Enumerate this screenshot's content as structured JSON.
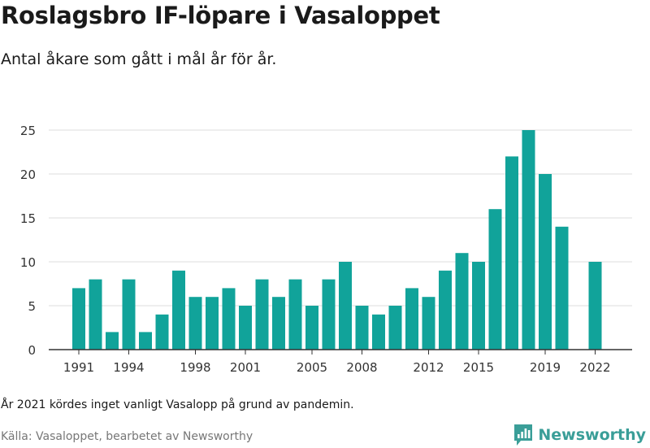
{
  "header": {
    "title": "Roslagsbro IF-löpare i Vasaloppet",
    "subtitle": "Antal åkare som gått i mål år för år."
  },
  "footer": {
    "note": "År 2021 kördes inget vanligt Vasalopp på grund av pandemin.",
    "source": "Källa: Vasaloppet, bearbetet av Newsworthy",
    "brand": "Newsworthy",
    "brand_icon": "newsworthy-logo-icon"
  },
  "colors": {
    "bar": "#11a39a",
    "grid": "#dddddd",
    "axis": "#333333",
    "brand": "#3a9e98"
  },
  "chart_data": {
    "type": "bar",
    "title": "Roslagsbro IF-löpare i Vasaloppet",
    "subtitle": "Antal åkare som gått i mål år för år.",
    "xlabel": "",
    "ylabel": "",
    "categories": [
      1991,
      1992,
      1993,
      1994,
      1995,
      1996,
      1997,
      1998,
      1999,
      2000,
      2001,
      2002,
      2003,
      2004,
      2005,
      2006,
      2007,
      2008,
      2009,
      2010,
      2011,
      2012,
      2013,
      2014,
      2015,
      2016,
      2017,
      2018,
      2019,
      2020,
      2021,
      2022
    ],
    "values": [
      7,
      8,
      2,
      8,
      2,
      4,
      9,
      6,
      6,
      7,
      5,
      8,
      6,
      8,
      5,
      8,
      10,
      5,
      4,
      5,
      7,
      6,
      9,
      11,
      10,
      16,
      22,
      25,
      20,
      14,
      null,
      10
    ],
    "x_tick_labels": [
      "1991",
      "1994",
      "1998",
      "2001",
      "2005",
      "2008",
      "2012",
      "2015",
      "2019",
      "2022"
    ],
    "y_ticks": [
      0,
      5,
      10,
      15,
      20,
      25
    ],
    "ylim": [
      0,
      25
    ],
    "grid": true,
    "legend": "none"
  }
}
